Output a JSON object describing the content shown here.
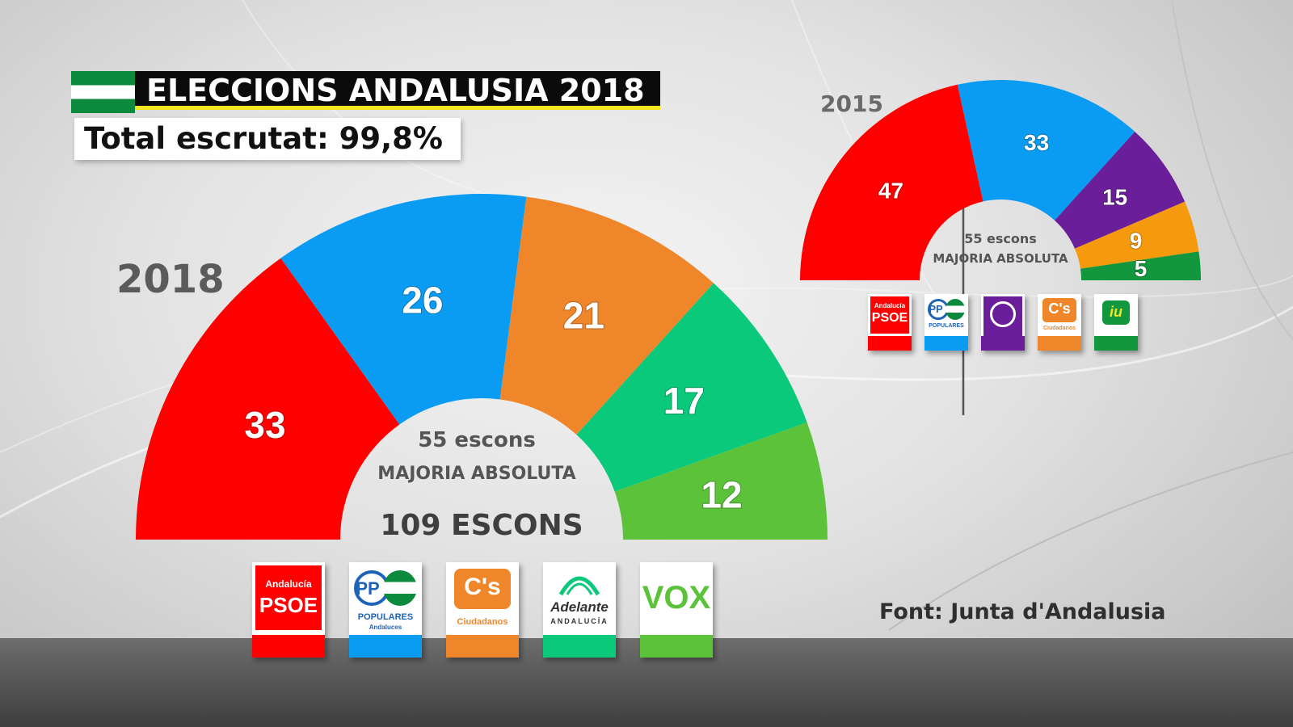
{
  "header": {
    "title": "ELECCIONS ANDALUSIA 2018",
    "subtitle": "Total escrutat: 99,8%"
  },
  "colors": {
    "psoe": "#ff0000",
    "pp": "#0a9bf2",
    "cs": "#f0862a",
    "adelante": "#0bc97a",
    "vox": "#5cc23a",
    "podemos": "#6a1e9a",
    "iu": "#12963e"
  },
  "chart_data": [
    {
      "type": "parliament",
      "year_label": "2018",
      "total_seats": 109,
      "total_label": "109 ESCONS",
      "majority_seats": 55,
      "majority_line1": "55 escons",
      "majority_line2": "MAJORIA ABSOLUTA",
      "parties": [
        {
          "logo": "psoe-logo",
          "seats": 33,
          "color": "#ff0000"
        },
        {
          "logo": "pp-logo",
          "seats": 26,
          "color": "#0a9bf2"
        },
        {
          "logo": "cs-logo",
          "seats": 21,
          "color": "#f0862a"
        },
        {
          "logo": "adelante-logo",
          "seats": 17,
          "color": "#0bc97a"
        },
        {
          "logo": "vox-logo",
          "seats": 12,
          "color": "#5cc23a"
        }
      ]
    },
    {
      "type": "parliament",
      "year_label": "2015",
      "total_seats": 109,
      "majority_seats": 55,
      "majority_line1": "55 escons",
      "majority_line2": "MAJORIA ABSOLUTA",
      "parties": [
        {
          "logo": "psoe-logo",
          "seats": 47,
          "color": "#ff0000"
        },
        {
          "logo": "pp-logo",
          "seats": 33,
          "color": "#0a9bf2"
        },
        {
          "logo": "podemos-logo",
          "seats": 15,
          "color": "#6a1e9a"
        },
        {
          "logo": "cs-logo",
          "seats": 9,
          "color": "#f59a0c"
        },
        {
          "logo": "iu-logo",
          "seats": 5,
          "color": "#12963e"
        }
      ]
    }
  ],
  "logos": {
    "psoe_top": "Andalucía",
    "psoe_main": "PSOE",
    "pp_main": "PP",
    "pp_sub": "POPULARES",
    "pp_sub2": "Andaluces",
    "cs_main": "C's",
    "cs_sub": "Ciudadanos",
    "adelante_main": "Adelante",
    "adelante_sub": "ANDALUCÍA",
    "vox_main": "VOX",
    "iu_main": "iu"
  },
  "source": "Font: Junta d'Andalusia"
}
